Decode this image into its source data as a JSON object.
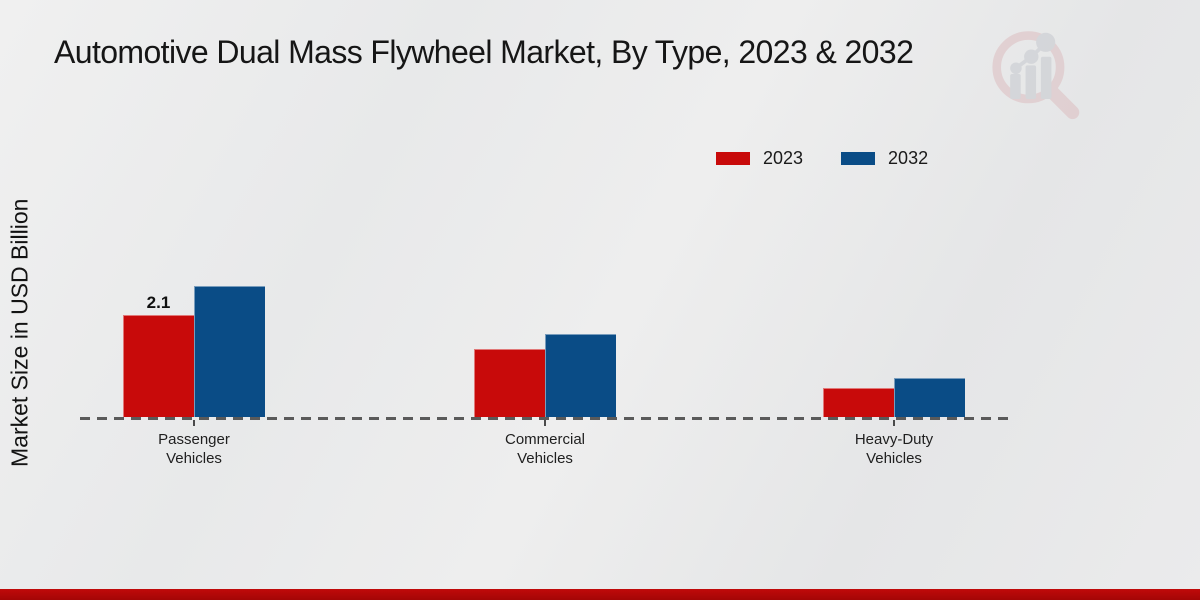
{
  "page": {
    "title": "Automotive Dual Mass Flywheel Market, By Type, 2023 & 2032",
    "y_axis_label": "Market Size in USD Billion"
  },
  "legend": {
    "position": "top-right",
    "items": [
      {
        "label": "2023",
        "color": "#c80a0a"
      },
      {
        "label": "2032",
        "color": "#0a4c86"
      }
    ]
  },
  "logo": {
    "name": "market-research-future-watermark"
  },
  "colors": {
    "bar_2023": "#c80a0a",
    "bar_2032": "#0a4c86",
    "footer_strip": "#b30808",
    "axis_dash": "#5a5a5a",
    "background": "#e9eaeb"
  },
  "chart_data": {
    "type": "bar",
    "title": "Automotive Dual Mass Flywheel Market, By Type, 2023 & 2032",
    "categories": [
      "Passenger Vehicles",
      "Commercial Vehicles",
      "Heavy-Duty Vehicles"
    ],
    "series": [
      {
        "name": "2023",
        "color": "#c80a0a",
        "values": [
          2.1,
          1.4,
          0.6
        ]
      },
      {
        "name": "2032",
        "color": "#0a4c86",
        "values": [
          2.7,
          1.7,
          0.8
        ]
      }
    ],
    "xlabel": "",
    "ylabel": "Market Size in USD Billion",
    "data_labels": [
      {
        "series": "2023",
        "category": "Passenger Vehicles",
        "text": "2.1"
      }
    ],
    "grid": false,
    "legend_position": "top-right",
    "baseline_style": "dashed",
    "y_axis_ticks_shown": false
  }
}
